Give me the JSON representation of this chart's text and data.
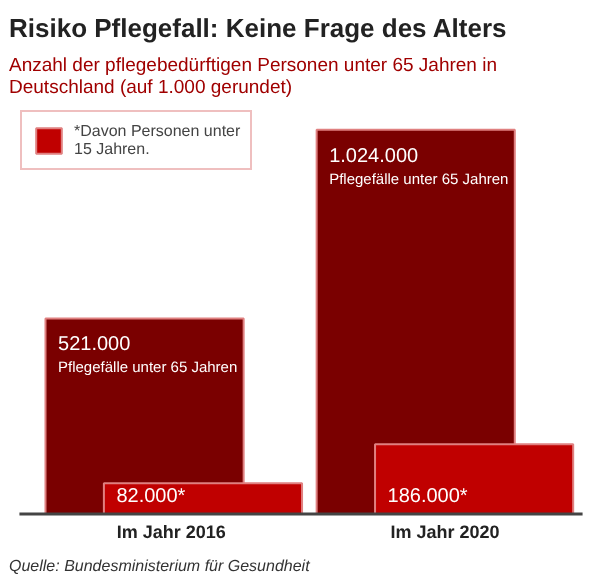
{
  "chart_data": {
    "type": "bar",
    "title": "Risiko Pflegefall: Keine Frage des Alters",
    "subtitle": "Anzahl der pflegebedürftigen Personen unter 65 Jahren in Deutschland (auf 1.000 gerundet)",
    "categories": [
      "Im Jahr  2016",
      "Im Jahr 2020"
    ],
    "series": [
      {
        "name": "Pflegefälle unter 65 Jahren",
        "color": "#7a0000",
        "values": [
          521000,
          1024000
        ],
        "value_labels": [
          "521.000",
          "1.024.000"
        ]
      },
      {
        "name": "*Davon Personen unter 15 Jahren.",
        "color": "#c00000",
        "values": [
          82000,
          186000
        ],
        "value_labels": [
          "82.000*",
          "186.000*"
        ]
      }
    ],
    "legend": "top left",
    "annotations": [
      "Quelle: Bundesministerium für Gesundheit"
    ]
  }
}
